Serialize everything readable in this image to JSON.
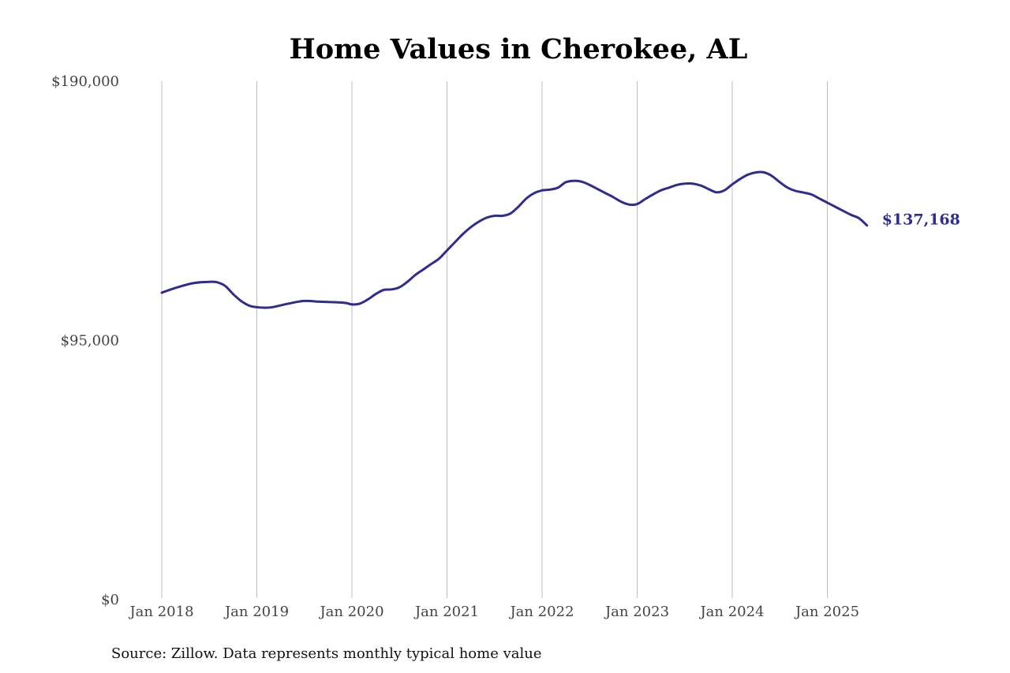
{
  "chart_data": {
    "type": "line",
    "title": "Home Values in Cherokee, AL",
    "source": "Source: Zillow. Data represents monthly typical home value",
    "ylim": [
      0,
      190000
    ],
    "y_ticks": [
      {
        "value": 0,
        "label": "$0"
      },
      {
        "value": 95000,
        "label": "$95,000"
      },
      {
        "value": 190000,
        "label": "$190,000"
      }
    ],
    "x_ticks": [
      {
        "year": 2018,
        "label": "Jan 2018"
      },
      {
        "year": 2019,
        "label": "Jan 2019"
      },
      {
        "year": 2020,
        "label": "Jan 2020"
      },
      {
        "year": 2021,
        "label": "Jan 2021"
      },
      {
        "year": 2022,
        "label": "Jan 2022"
      },
      {
        "year": 2023,
        "label": "Jan 2023"
      },
      {
        "year": 2024,
        "label": "Jan 2024"
      },
      {
        "year": 2025,
        "label": "Jan 2025"
      }
    ],
    "grid": "vertical",
    "line_color": "#2e2d8f",
    "end_label": "$137,168",
    "series": [
      {
        "x": [
          "2018-01",
          "2018-03",
          "2018-05",
          "2018-07",
          "2018-08",
          "2018-09",
          "2018-10",
          "2018-11",
          "2018-12",
          "2019-01",
          "2019-02",
          "2019-03",
          "2019-05",
          "2019-07",
          "2019-09",
          "2019-12",
          "2020-01",
          "2020-02",
          "2020-03",
          "2020-04",
          "2020-05",
          "2020-06",
          "2020-07",
          "2020-08",
          "2020-09",
          "2020-10",
          "2020-11",
          "2020-12",
          "2021-01",
          "2021-02",
          "2021-03",
          "2021-04",
          "2021-05",
          "2021-06",
          "2021-07",
          "2021-08",
          "2021-09",
          "2021-10",
          "2021-11",
          "2021-12",
          "2022-01",
          "2022-02",
          "2022-03",
          "2022-04",
          "2022-05",
          "2022-06",
          "2022-07",
          "2022-08",
          "2022-09",
          "2022-10",
          "2022-11",
          "2022-12",
          "2023-01",
          "2023-02",
          "2023-03",
          "2023-04",
          "2023-05",
          "2023-06",
          "2023-07",
          "2023-08",
          "2023-09",
          "2023-10",
          "2023-11",
          "2023-12",
          "2024-01",
          "2024-02",
          "2024-03",
          "2024-04",
          "2024-05",
          "2024-06",
          "2024-07",
          "2024-08",
          "2024-09",
          "2024-10",
          "2024-11",
          "2024-12",
          "2025-01",
          "2025-02",
          "2025-03",
          "2025-04",
          "2025-05",
          "2025-06"
        ],
        "values": [
          112500,
          114500,
          116000,
          116500,
          116300,
          115000,
          112000,
          109500,
          107800,
          107200,
          107000,
          107200,
          108500,
          109500,
          109200,
          108800,
          108200,
          108500,
          110000,
          112000,
          113500,
          113700,
          114500,
          116500,
          119000,
          121000,
          123000,
          125000,
          128000,
          131000,
          134000,
          136500,
          138500,
          140000,
          140700,
          140700,
          141500,
          144000,
          147000,
          149000,
          150000,
          150300,
          151000,
          153000,
          153500,
          153200,
          152000,
          150500,
          149000,
          147500,
          145800,
          144800,
          145000,
          146800,
          148500,
          150000,
          151000,
          152000,
          152500,
          152500,
          151800,
          150500,
          149300,
          150000,
          152200,
          154200,
          155800,
          156600,
          156600,
          155300,
          153000,
          151000,
          149800,
          149200,
          148500,
          147000,
          145500,
          144000,
          142500,
          141000,
          139800,
          137168
        ]
      }
    ]
  }
}
